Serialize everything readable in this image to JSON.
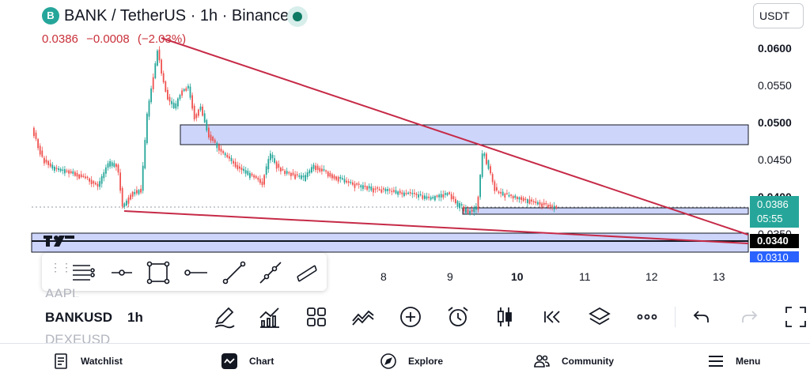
{
  "header": {
    "logo_letter": "B",
    "symbol_title": "BANK / TetherUS · 1h · Binance",
    "currency": "USDT"
  },
  "quote": {
    "last": "0.0386",
    "change": "−0.0008",
    "change_pct": "(−2.03%)"
  },
  "price_axis": {
    "labels": [
      "0.0600",
      "0.0550",
      "0.0500",
      "0.0450",
      "0.0400",
      "0.0350"
    ]
  },
  "price_tags": {
    "current_price": "0.0386",
    "countdown": "05:55",
    "line_level": "0.0340",
    "zone_level": "0.0310"
  },
  "time_axis": {
    "labels": [
      "8",
      "9",
      "10",
      "11",
      "12",
      "13"
    ]
  },
  "drawing_tools": [
    {
      "name": "horizontal-ray",
      "icon": "lines-stack-icon"
    },
    {
      "name": "horizontal-line",
      "icon": "line-point-icon"
    },
    {
      "name": "rectangle",
      "icon": "rectangle-icon"
    },
    {
      "name": "ray",
      "icon": "ray-icon"
    },
    {
      "name": "trend-line",
      "icon": "trend-line-icon"
    },
    {
      "name": "extended-line",
      "icon": "extended-line-icon"
    },
    {
      "name": "parallel-channel",
      "icon": "channel-icon"
    }
  ],
  "symbols": {
    "above": "AAPL",
    "active": "BANKUSD",
    "below": "DEXEUSD",
    "interval": "1h"
  },
  "toolbar": [
    {
      "name": "draw",
      "icon": "pen-icon"
    },
    {
      "name": "indicators",
      "icon": "indicators-icon"
    },
    {
      "name": "layouts",
      "icon": "grid-icon"
    },
    {
      "name": "compare",
      "icon": "compare-icon"
    },
    {
      "name": "add",
      "icon": "plus-circle-icon"
    },
    {
      "name": "alert",
      "icon": "alarm-clock-icon"
    },
    {
      "name": "chart-type",
      "icon": "candles-icon"
    },
    {
      "name": "replay",
      "icon": "rewind-icon"
    },
    {
      "name": "object-tree",
      "icon": "layers-icon"
    },
    {
      "name": "more",
      "icon": "more-icon"
    },
    {
      "name": "undo",
      "icon": "undo-icon"
    },
    {
      "name": "redo",
      "icon": "redo-icon"
    },
    {
      "name": "fullscreen",
      "icon": "fullscreen-icon"
    }
  ],
  "nav": [
    {
      "label": "Watchlist",
      "icon": "watchlist-icon"
    },
    {
      "label": "Chart",
      "icon": "chart-icon"
    },
    {
      "label": "Explore",
      "icon": "compass-icon"
    },
    {
      "label": "Community",
      "icon": "community-icon"
    },
    {
      "label": "Menu",
      "icon": "menu-icon"
    }
  ],
  "colors": {
    "up": "#26a69a",
    "down": "#ef5350",
    "trendline": "#c62a47",
    "zone_fill": "#cdd5fb",
    "current_tag": "#26a69a",
    "line_tag": "#000000",
    "zone_tag": "#2962ff",
    "quote_text": "#c9303a"
  }
}
